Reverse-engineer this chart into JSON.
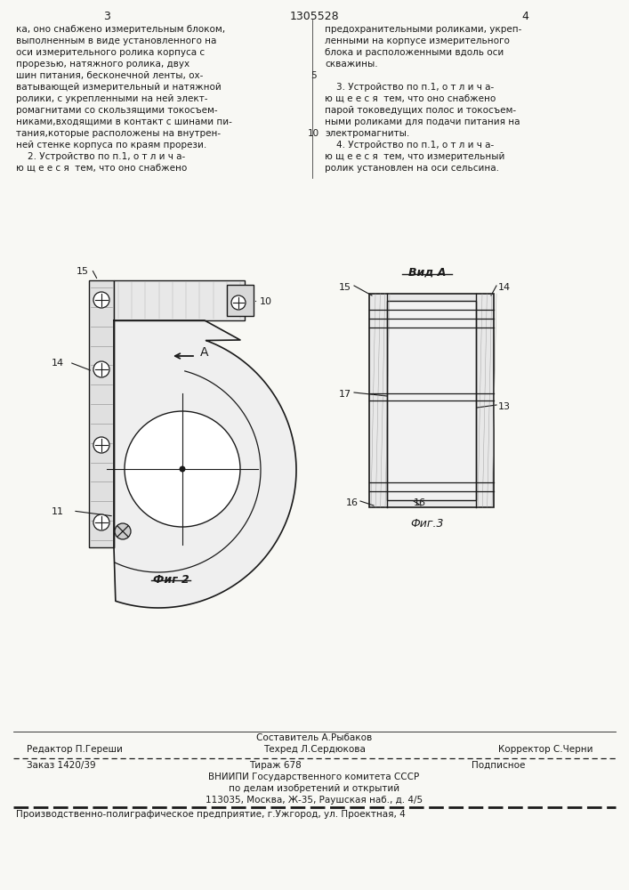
{
  "page_color": "#f8f8f4",
  "text_color": "#1a1a1a",
  "line_color": "#1a1a1a",
  "page_num_left": "3",
  "page_num_center": "1305528",
  "page_num_right": "4",
  "col_left_text": [
    "ка, оно снабжено измерительным блоком,",
    "выполненным в виде установленного на",
    "оси измерительного ролика корпуса с",
    "прорезью, натяжного ролика, двух",
    "шин питания, бесконечной ленты, ох-",
    "ватывающей измерительный и натяжной",
    "ролики, с укрепленными на ней элект-",
    "ромагнитами со скользящими токосъем-",
    "никами,входящими в контакт с шинами пи-",
    "тания,которые расположены на внутрен-",
    "ней стенке корпуса по краям прорези.",
    "    2. Устройство по п.1, о т л и ч а-",
    "ю щ е е с я  тем, что оно снабжено"
  ],
  "col_right_text": [
    "предохранительными роликами, укреп-",
    "ленными на корпусе измерительного",
    "блока и расположенными вдоль оси",
    "скважины.",
    "",
    "    3. Устройство по п.1, о т л и ч а-",
    "ю щ е е с я  тем, что оно снабжено",
    "парой токоведущих полос и токосъем-",
    "ными роликами для подачи питания на",
    "электромагниты.",
    "    4. Устройство по п.1, о т л и ч а-",
    "ю щ е е с я  тем, что измерительный",
    "ролик установлен на оси сельсина."
  ],
  "fig2_caption": "Фиг 2",
  "fig3_caption": "Фиг.3",
  "vid_a_label": "Вид A",
  "footer_line1": "Составитель А.Рыбаков",
  "footer_line2_left": "Редактор П.Гереши",
  "footer_line2_mid": "Техред Л.Сердюкова",
  "footer_line2_right": "Корректор С.Черни",
  "footer_line3_left": "Заказ 1420/39",
  "footer_line3_mid": "Тираж 678",
  "footer_line3_right": "Подписное",
  "footer_line4": "ВНИИПИ Государственного комитета СССР",
  "footer_line5": "по делам изобретений и открытий",
  "footer_line6": "113035, Москва, Ж-35, Раушская наб., д. 4/5",
  "footer_last": "Производственно-полиграфическое предприятие, г.Ужгород, ул. Проектная, 4"
}
